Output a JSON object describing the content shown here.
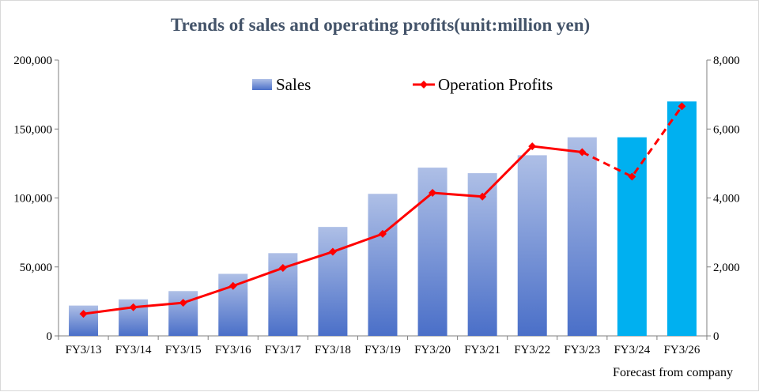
{
  "chart_data": {
    "type": "bar",
    "title": "Trends of sales and operating profits(unit:million yen)",
    "categories": [
      "FY3/13",
      "FY3/14",
      "FY3/15",
      "FY3/16",
      "FY3/17",
      "FY3/18",
      "FY3/19",
      "FY3/20",
      "FY3/21",
      "FY3/22",
      "FY3/23",
      "FY3/24",
      "FY3/26"
    ],
    "series": [
      {
        "name": "Sales",
        "type": "bar",
        "axis": "left",
        "values": [
          22000,
          26500,
          32500,
          45000,
          60000,
          79000,
          103000,
          122000,
          118000,
          131000,
          144000,
          144000,
          170000
        ],
        "forecast_from_index": 11
      },
      {
        "name": "Operation Profits",
        "type": "line",
        "axis": "right",
        "values": [
          640,
          830,
          960,
          1450,
          1970,
          2440,
          2960,
          4150,
          4040,
          5500,
          5330,
          4620,
          6660
        ],
        "forecast_from_index": 11
      }
    ],
    "ylim_left": [
      0,
      200000
    ],
    "yticks_left": [
      "0",
      "50,000",
      "100,000",
      "150,000",
      "200,000"
    ],
    "ylim_right": [
      0,
      8000
    ],
    "yticks_right": [
      "0",
      "2,000",
      "4,000",
      "6,000",
      "8,000"
    ],
    "grid": false,
    "legend": "top",
    "colors": {
      "bar_top": "#aebfe6",
      "bar_bottom": "#4a6fc8",
      "forecast_bar": "#00b0f0",
      "line": "#ff0000",
      "title": "#44546a"
    },
    "annotation": "Forecast from company"
  }
}
